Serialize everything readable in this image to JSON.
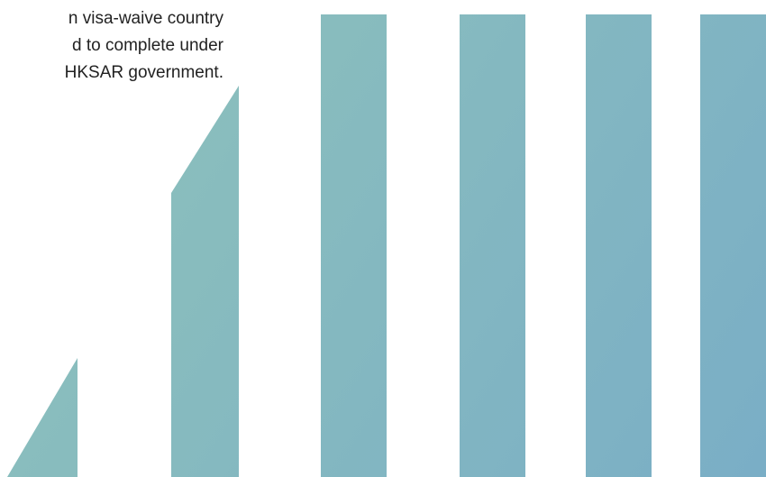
{
  "text": {
    "lines": [
      "n visa-waive country",
      "d to complete under",
      "HKSAR government."
    ]
  },
  "colors": {
    "gradient_start": "#8fc3ba",
    "gradient_end": "#7aaec6"
  }
}
